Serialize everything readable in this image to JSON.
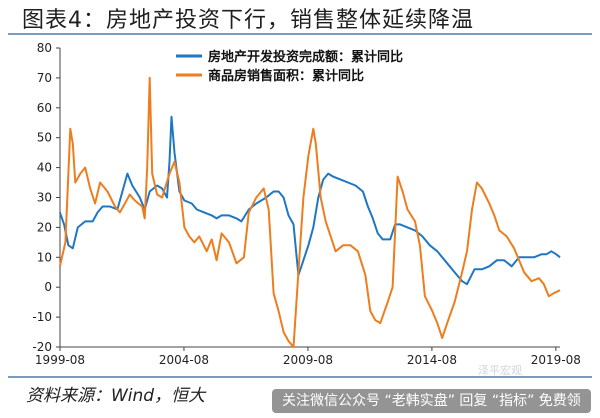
{
  "header": {
    "title": "图表4：房地产投资下行，销售整体延续降温"
  },
  "footer": {
    "source": "资料来源：Wind，恒大",
    "overlay_text": "关注微信公众号 “老韩实盘” 回复 “指标” 免费领",
    "watermark": "泽平宏观"
  },
  "colors": {
    "investment": "#1f77c4",
    "sales": "#ee7d1e",
    "axis": "#444444"
  },
  "chart_data": {
    "type": "line",
    "title": "",
    "xlabel": "",
    "ylabel": "",
    "ylim": [
      -20,
      80
    ],
    "yticks": [
      -20,
      -10,
      0,
      10,
      20,
      30,
      40,
      50,
      60,
      70,
      80
    ],
    "xlim": [
      1999.583,
      2019.75
    ],
    "xticks": [
      {
        "label": "1999-08",
        "value": 1999.583
      },
      {
        "label": "2004-08",
        "value": 2004.583
      },
      {
        "label": "2009-08",
        "value": 2009.583
      },
      {
        "label": "2014-08",
        "value": 2014.583
      },
      {
        "label": "2019-08",
        "value": 2019.583
      }
    ],
    "legend_position": "top",
    "series": [
      {
        "name": "房地产开发投资完成额：累计同比",
        "color": "#1f77c4",
        "points": [
          [
            1999.58,
            25
          ],
          [
            1999.75,
            21
          ],
          [
            1999.92,
            14
          ],
          [
            2000.1,
            13
          ],
          [
            2000.3,
            20
          ],
          [
            2000.6,
            22
          ],
          [
            2000.9,
            22
          ],
          [
            2001.1,
            25
          ],
          [
            2001.3,
            27
          ],
          [
            2001.6,
            27
          ],
          [
            2001.9,
            26
          ],
          [
            2002.1,
            32
          ],
          [
            2002.3,
            38
          ],
          [
            2002.5,
            34
          ],
          [
            2002.8,
            30
          ],
          [
            2003.0,
            26
          ],
          [
            2003.2,
            32
          ],
          [
            2003.5,
            34
          ],
          [
            2003.7,
            33
          ],
          [
            2003.9,
            30
          ],
          [
            2004.0,
            42
          ],
          [
            2004.08,
            57
          ],
          [
            2004.2,
            45
          ],
          [
            2004.4,
            32
          ],
          [
            2004.6,
            29
          ],
          [
            2004.9,
            28
          ],
          [
            2005.1,
            26
          ],
          [
            2005.4,
            25
          ],
          [
            2005.7,
            24
          ],
          [
            2005.9,
            23
          ],
          [
            2006.1,
            24
          ],
          [
            2006.4,
            24
          ],
          [
            2006.7,
            23
          ],
          [
            2006.9,
            22
          ],
          [
            2007.2,
            26
          ],
          [
            2007.5,
            28
          ],
          [
            2007.9,
            30
          ],
          [
            2008.2,
            32
          ],
          [
            2008.4,
            32
          ],
          [
            2008.6,
            30
          ],
          [
            2008.8,
            24
          ],
          [
            2009.0,
            21
          ],
          [
            2009.2,
            4
          ],
          [
            2009.4,
            9
          ],
          [
            2009.6,
            14
          ],
          [
            2009.8,
            20
          ],
          [
            2010.0,
            30
          ],
          [
            2010.2,
            36
          ],
          [
            2010.4,
            38
          ],
          [
            2010.6,
            37
          ],
          [
            2010.9,
            36
          ],
          [
            2011.2,
            35
          ],
          [
            2011.5,
            34
          ],
          [
            2011.8,
            32
          ],
          [
            2012.0,
            27
          ],
          [
            2012.2,
            23
          ],
          [
            2012.4,
            18
          ],
          [
            2012.6,
            16
          ],
          [
            2012.9,
            16
          ],
          [
            2013.1,
            21
          ],
          [
            2013.3,
            21
          ],
          [
            2013.6,
            20
          ],
          [
            2013.9,
            19
          ],
          [
            2014.2,
            17
          ],
          [
            2014.5,
            14
          ],
          [
            2014.8,
            12
          ],
          [
            2015.0,
            10
          ],
          [
            2015.2,
            8
          ],
          [
            2015.5,
            5
          ],
          [
            2015.8,
            2
          ],
          [
            2016.0,
            1
          ],
          [
            2016.3,
            6
          ],
          [
            2016.6,
            6
          ],
          [
            2016.9,
            7
          ],
          [
            2017.2,
            9
          ],
          [
            2017.5,
            9
          ],
          [
            2017.8,
            7
          ],
          [
            2018.1,
            10
          ],
          [
            2018.4,
            10
          ],
          [
            2018.7,
            10
          ],
          [
            2019.0,
            11
          ],
          [
            2019.2,
            11
          ],
          [
            2019.4,
            12
          ],
          [
            2019.6,
            11
          ],
          [
            2019.75,
            10
          ]
        ]
      },
      {
        "name": "商品房销售面积：累计同比",
        "color": "#ee7d1e",
        "points": [
          [
            1999.58,
            7
          ],
          [
            1999.8,
            15
          ],
          [
            2000.0,
            53
          ],
          [
            2000.1,
            48
          ],
          [
            2000.2,
            35
          ],
          [
            2000.4,
            38
          ],
          [
            2000.6,
            40
          ],
          [
            2000.8,
            33
          ],
          [
            2001.0,
            28
          ],
          [
            2001.2,
            35
          ],
          [
            2001.5,
            32
          ],
          [
            2001.8,
            27
          ],
          [
            2002.0,
            25
          ],
          [
            2002.2,
            28
          ],
          [
            2002.4,
            31
          ],
          [
            2002.6,
            29
          ],
          [
            2002.9,
            27
          ],
          [
            2003.0,
            23
          ],
          [
            2003.1,
            40
          ],
          [
            2003.2,
            70
          ],
          [
            2003.3,
            38
          ],
          [
            2003.5,
            31
          ],
          [
            2003.7,
            30
          ],
          [
            2004.0,
            38
          ],
          [
            2004.2,
            42
          ],
          [
            2004.4,
            35
          ],
          [
            2004.6,
            20
          ],
          [
            2004.8,
            17
          ],
          [
            2005.0,
            15
          ],
          [
            2005.2,
            17
          ],
          [
            2005.5,
            12
          ],
          [
            2005.7,
            16
          ],
          [
            2005.9,
            9
          ],
          [
            2006.1,
            18
          ],
          [
            2006.4,
            15
          ],
          [
            2006.7,
            8
          ],
          [
            2007.0,
            10
          ],
          [
            2007.2,
            25
          ],
          [
            2007.5,
            30
          ],
          [
            2007.8,
            33
          ],
          [
            2008.0,
            26
          ],
          [
            2008.2,
            -2
          ],
          [
            2008.4,
            -8
          ],
          [
            2008.6,
            -15
          ],
          [
            2008.8,
            -18
          ],
          [
            2009.0,
            -20
          ],
          [
            2009.2,
            5
          ],
          [
            2009.4,
            30
          ],
          [
            2009.6,
            44
          ],
          [
            2009.8,
            53
          ],
          [
            2009.9,
            48
          ],
          [
            2010.1,
            30
          ],
          [
            2010.3,
            22
          ],
          [
            2010.5,
            17
          ],
          [
            2010.7,
            12
          ],
          [
            2011.0,
            14
          ],
          [
            2011.3,
            14
          ],
          [
            2011.6,
            12
          ],
          [
            2011.9,
            4
          ],
          [
            2012.1,
            -8
          ],
          [
            2012.3,
            -11
          ],
          [
            2012.5,
            -12
          ],
          [
            2012.8,
            -5
          ],
          [
            2013.0,
            0
          ],
          [
            2013.2,
            37
          ],
          [
            2013.4,
            32
          ],
          [
            2013.6,
            26
          ],
          [
            2013.9,
            22
          ],
          [
            2014.1,
            14
          ],
          [
            2014.3,
            -3
          ],
          [
            2014.6,
            -8
          ],
          [
            2014.8,
            -12
          ],
          [
            2015.0,
            -17
          ],
          [
            2015.2,
            -12
          ],
          [
            2015.5,
            -5
          ],
          [
            2015.8,
            5
          ],
          [
            2016.0,
            12
          ],
          [
            2016.2,
            26
          ],
          [
            2016.4,
            35
          ],
          [
            2016.6,
            33
          ],
          [
            2016.9,
            28
          ],
          [
            2017.1,
            24
          ],
          [
            2017.3,
            19
          ],
          [
            2017.6,
            17
          ],
          [
            2017.9,
            13
          ],
          [
            2018.1,
            9
          ],
          [
            2018.3,
            5
          ],
          [
            2018.6,
            2
          ],
          [
            2018.9,
            3
          ],
          [
            2019.1,
            1
          ],
          [
            2019.3,
            -3
          ],
          [
            2019.5,
            -2
          ],
          [
            2019.75,
            -1
          ]
        ]
      }
    ]
  }
}
